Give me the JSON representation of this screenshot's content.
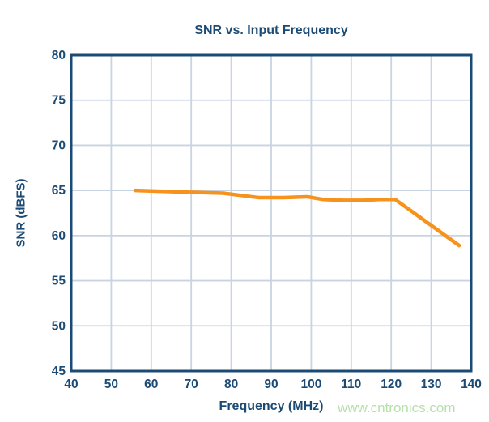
{
  "title": "SNR vs. Input Frequency",
  "watermark_text": "www.cntronics.com",
  "colors": {
    "navy": "#1b4b75",
    "grid": "#c8d4e2",
    "line_orange": "#f6921e",
    "watermark_green": "#b6e0aa",
    "background": "#ffffff"
  },
  "chart_data": {
    "type": "line",
    "title": "SNR vs. Input Frequency",
    "xlabel": "Frequency (MHz)",
    "ylabel": "SNR (dBFS)",
    "xlim": [
      40,
      140
    ],
    "ylim": [
      45,
      80
    ],
    "x_ticks": [
      40,
      50,
      60,
      70,
      80,
      90,
      100,
      110,
      120,
      130,
      140
    ],
    "y_ticks": [
      45,
      50,
      55,
      60,
      65,
      70,
      75,
      80
    ],
    "grid": true,
    "legend": "none",
    "series": [
      {
        "name": "SNR",
        "color": "#f6921e",
        "x": [
          56,
          70,
          78,
          87,
          93,
          99,
          103,
          108,
          113,
          117,
          121,
          137
        ],
        "y": [
          65.0,
          64.8,
          64.7,
          64.2,
          64.2,
          64.3,
          64.0,
          63.9,
          63.9,
          64.0,
          64.0,
          58.9
        ]
      }
    ]
  }
}
